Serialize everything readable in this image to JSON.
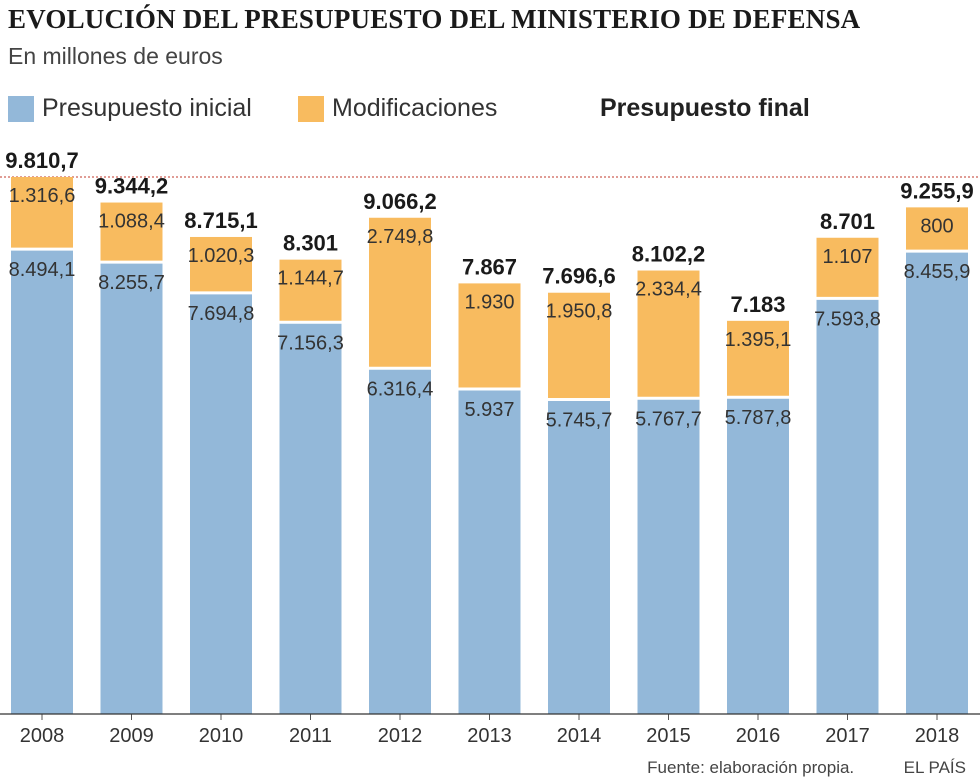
{
  "title": "EVOLUCIÓN DEL PRESUPUESTO DEL MINISTERIO DE DEFENSA",
  "subtitle": "En millones de euros",
  "legend": {
    "initial": "Presupuesto inicial",
    "modifications": "Modificaciones",
    "final": "Presupuesto final"
  },
  "colors": {
    "initial": "#93b8d9",
    "modifications": "#f8bb5f",
    "reference_line": "#c0392b"
  },
  "source": "Fuente: elaboración propia.",
  "brand": "EL PAÍS",
  "chart_data": {
    "type": "bar",
    "stacked": true,
    "title": "EVOLUCIÓN DEL PRESUPUESTO DEL MINISTERIO DE DEFENSA",
    "ylabel": "En millones de euros",
    "ylim": [
      0,
      9810.7
    ],
    "categories": [
      "2008",
      "2009",
      "2010",
      "2011",
      "2012",
      "2013",
      "2014",
      "2015",
      "2016",
      "2017",
      "2018"
    ],
    "series": [
      {
        "name": "Presupuesto inicial",
        "values": [
          8494.1,
          8255.7,
          7694.8,
          7156.3,
          6316.4,
          5937,
          5745.7,
          5767.7,
          5787.8,
          7593.8,
          8455.9
        ],
        "labels": [
          "8.494,1",
          "8.255,7",
          "7.694,8",
          "7.156,3",
          "6.316,4",
          "5.937",
          "5.745,7",
          "5.767,7",
          "5.787,8",
          "7.593,8",
          "8.455,9"
        ]
      },
      {
        "name": "Modificaciones",
        "values": [
          1316.6,
          1088.4,
          1020.3,
          1144.7,
          2749.8,
          1930,
          1950.8,
          2334.4,
          1395.1,
          1107,
          800
        ],
        "labels": [
          "1.316,6",
          "1.088,4",
          "1.020,3",
          "1.144,7",
          "2.749,8",
          "1.930",
          "1.950,8",
          "2.334,4",
          "1.395,1",
          "1.107",
          "800"
        ]
      }
    ],
    "totals": {
      "name": "Presupuesto final",
      "values": [
        9810.7,
        9344.2,
        8715.1,
        8301,
        9066.2,
        7867,
        7696.6,
        8102.2,
        7183,
        8701,
        9255.9
      ],
      "labels": [
        "9.810,7",
        "9.344,2",
        "8.715,1",
        "8.301",
        "9.066,2",
        "7.867",
        "7.696,6",
        "8.102,2",
        "7.183",
        "8.701",
        "9.255,9"
      ]
    },
    "reference_line": {
      "value": 9810.7,
      "style": "dotted"
    },
    "grid": false,
    "legend_position": "top-left"
  }
}
